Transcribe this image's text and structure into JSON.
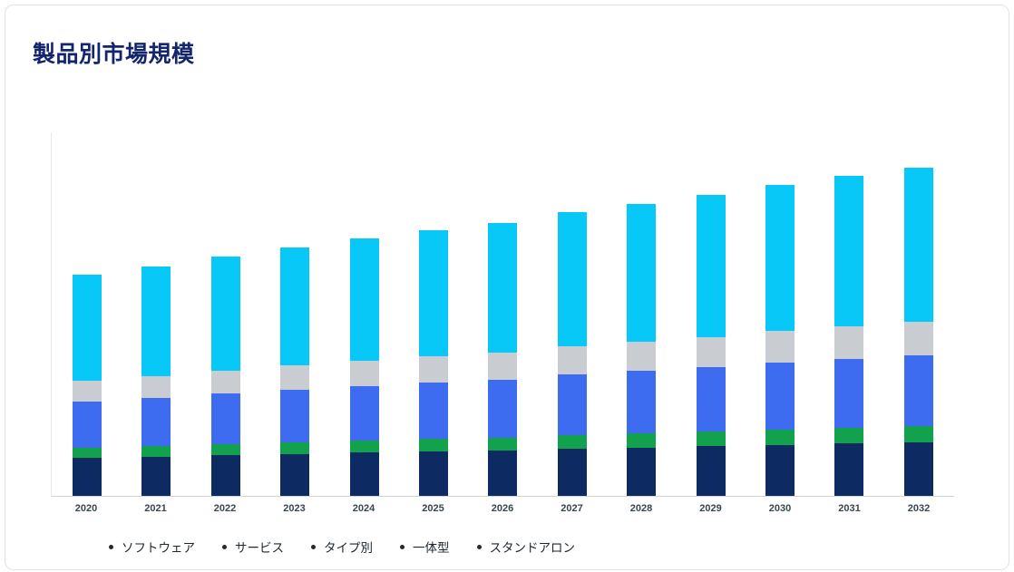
{
  "page": {
    "title": "製品別市場規模"
  },
  "chart_data": {
    "type": "bar",
    "stacked": true,
    "title": "製品別市場規模",
    "xlabel": "",
    "ylabel": "",
    "grid": false,
    "legend_position": "bottom",
    "ylim": [
      0,
      400
    ],
    "units": "relative index (no y-axis shown)",
    "categories": [
      "2020",
      "2021",
      "2022",
      "2023",
      "2024",
      "2025",
      "2026",
      "2027",
      "2028",
      "2029",
      "2030",
      "2031",
      "2032"
    ],
    "series": [
      {
        "name": "ソフトウェア",
        "color": "#0d2a63",
        "values": [
          42,
          43,
          45,
          46,
          48,
          49,
          50,
          52,
          53,
          55,
          56,
          58,
          59
        ]
      },
      {
        "name": "サービス",
        "color": "#12a14c",
        "values": [
          11,
          12,
          12,
          13,
          13,
          14,
          14,
          15,
          16,
          16,
          17,
          17,
          18
        ]
      },
      {
        "name": "タイプ別",
        "color": "#3e6cf0",
        "values": [
          51,
          53,
          56,
          58,
          60,
          62,
          64,
          67,
          69,
          71,
          74,
          76,
          78
        ]
      },
      {
        "name": "一体型",
        "color": "#c9cdd2",
        "values": [
          23,
          24,
          25,
          27,
          28,
          29,
          30,
          31,
          32,
          33,
          35,
          36,
          37
        ]
      },
      {
        "name": "スタンドアロン",
        "color": "#08c8f7",
        "values": [
          117,
          121,
          126,
          130,
          135,
          139,
          143,
          148,
          152,
          157,
          161,
          166,
          170
        ]
      }
    ]
  },
  "legend": {
    "items": [
      "ソフトウェア",
      "サービス",
      "タイプ別",
      "一体型",
      "スタンドアロン"
    ]
  }
}
